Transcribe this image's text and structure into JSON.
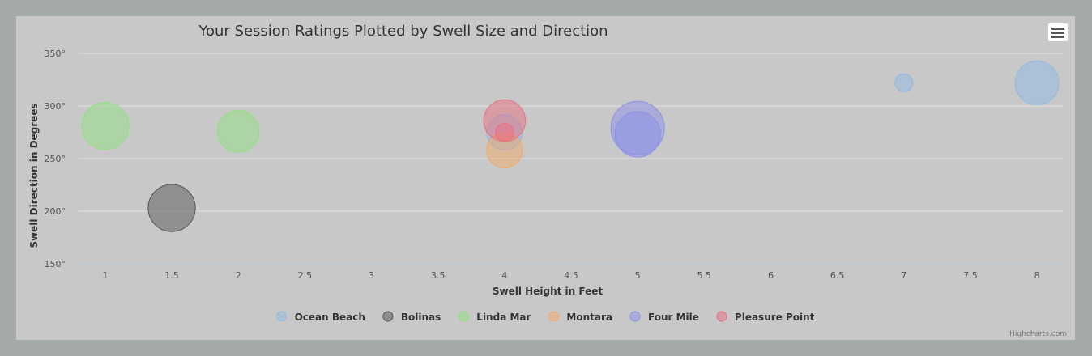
{
  "chart_data": {
    "type": "bubble",
    "title": "Your Session Ratings Plotted by Swell Size and Direction",
    "xlabel": "Swell Height in Feet",
    "ylabel": "Swell Direction in Degrees",
    "xlim": [
      0.8,
      8.2
    ],
    "ylim": [
      150,
      350
    ],
    "x_ticks": [
      1,
      1.5,
      2,
      2.5,
      3,
      3.5,
      4,
      4.5,
      5,
      5.5,
      6,
      6.5,
      7,
      7.5,
      8
    ],
    "x_tick_labels": [
      "1",
      "1.5",
      "2",
      "2.5",
      "3",
      "3.5",
      "4",
      "4.5",
      "5",
      "5.5",
      "6",
      "6.5",
      "7",
      "7.5",
      "8"
    ],
    "y_ticks": [
      150,
      200,
      250,
      300,
      350
    ],
    "y_tick_labels": [
      "150°",
      "200°",
      "250°",
      "300°",
      "350°"
    ],
    "grid": true,
    "legend_position": "bottom-center",
    "series": [
      {
        "name": "Ocean Beach",
        "color": "#90b8e3",
        "points": [
          {
            "x": 4,
            "y": 275,
            "z": 4
          },
          {
            "x": 7,
            "y": 322,
            "z": 1
          },
          {
            "x": 8,
            "y": 322,
            "z": 6
          }
        ]
      },
      {
        "name": "Bolinas",
        "color": "#555555",
        "points": [
          {
            "x": 1.5,
            "y": 203,
            "z": 7
          }
        ]
      },
      {
        "name": "Linda Mar",
        "color": "#90e080",
        "points": [
          {
            "x": 1,
            "y": 281,
            "z": 7
          },
          {
            "x": 2,
            "y": 276,
            "z": 5.5
          }
        ]
      },
      {
        "name": "Montara",
        "color": "#f2a968",
        "points": [
          {
            "x": 4,
            "y": 258,
            "z": 4
          }
        ]
      },
      {
        "name": "Four Mile",
        "color": "#8a90e8",
        "points": [
          {
            "x": 5,
            "y": 279,
            "z": 9
          },
          {
            "x": 5,
            "y": 273,
            "z": 6.5
          }
        ]
      },
      {
        "name": "Pleasure Point",
        "color": "#ea6f80",
        "points": [
          {
            "x": 4,
            "y": 286,
            "z": 5.5
          },
          {
            "x": 4,
            "y": 275,
            "z": 1
          }
        ]
      }
    ]
  },
  "credits": "Highcharts.com",
  "menu": {
    "icon": "hamburger-menu-icon"
  }
}
